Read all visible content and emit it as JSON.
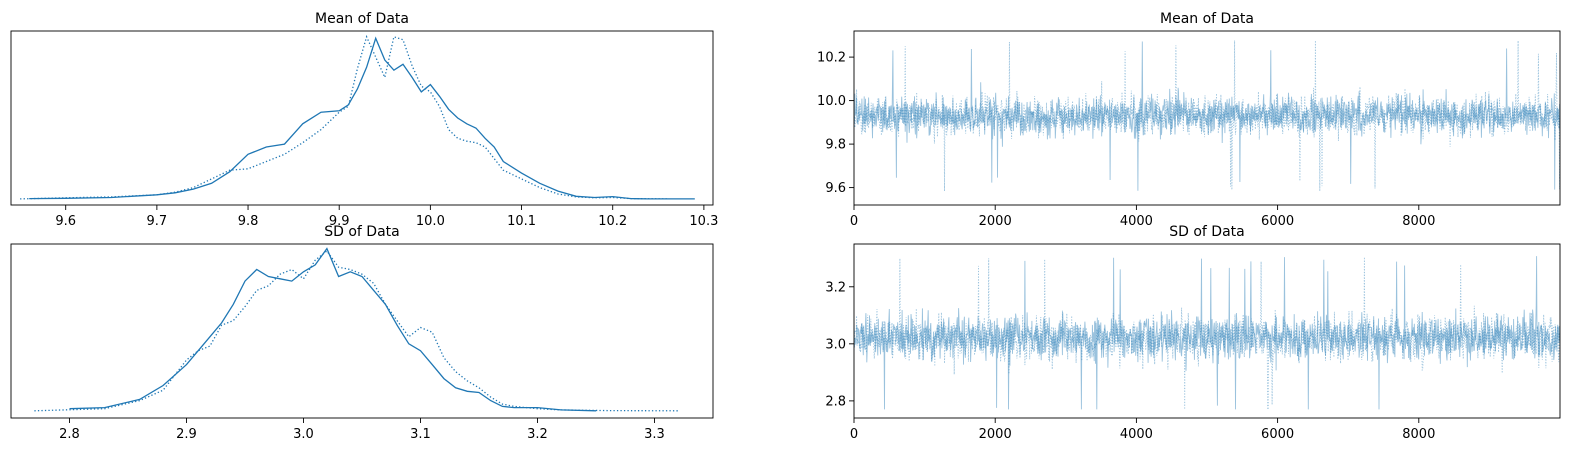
{
  "figure": {
    "background": "#ffffff"
  },
  "colors": {
    "series": "#1f77b4",
    "trace_alpha": 0.45
  },
  "chart_data": [
    {
      "panel": "mean-density",
      "type": "line",
      "title": "Mean of Data",
      "xlabel": "",
      "ylabel": "",
      "xlim": [
        9.54,
        10.31
      ],
      "ylim": [
        -0.2,
        5.8
      ],
      "xticks": [
        9.6,
        9.7,
        9.8,
        9.9,
        10.0,
        10.1,
        10.2,
        10.3
      ],
      "xtick_labels": [
        "9.6",
        "9.7",
        "9.8",
        "9.9",
        "10.0",
        "10.1",
        "10.2",
        "10.3"
      ],
      "show_yticks": false,
      "grid": false,
      "series": [
        {
          "style": "solid",
          "x": [
            9.56,
            9.6,
            9.65,
            9.7,
            9.72,
            9.74,
            9.76,
            9.78,
            9.8,
            9.82,
            9.84,
            9.86,
            9.88,
            9.9,
            9.91,
            9.92,
            9.93,
            9.94,
            9.95,
            9.96,
            9.97,
            9.98,
            9.99,
            10.0,
            10.01,
            10.02,
            10.03,
            10.04,
            10.05,
            10.06,
            10.07,
            10.08,
            10.1,
            10.12,
            10.14,
            10.16,
            10.18,
            10.2,
            10.22,
            10.24,
            10.29
          ],
          "y": [
            0.02,
            0.03,
            0.06,
            0.15,
            0.22,
            0.35,
            0.55,
            0.95,
            1.55,
            1.8,
            1.9,
            2.6,
            3.0,
            3.05,
            3.25,
            3.8,
            4.55,
            5.55,
            4.8,
            4.45,
            4.65,
            4.2,
            3.7,
            3.95,
            3.55,
            3.1,
            2.8,
            2.6,
            2.45,
            2.1,
            1.8,
            1.3,
            0.9,
            0.55,
            0.28,
            0.1,
            0.06,
            0.09,
            0.02,
            0.01,
            0.01
          ]
        },
        {
          "style": "dotted",
          "x": [
            9.55,
            9.6,
            9.65,
            9.7,
            9.72,
            9.74,
            9.76,
            9.78,
            9.8,
            9.82,
            9.84,
            9.86,
            9.88,
            9.9,
            9.91,
            9.92,
            9.93,
            9.94,
            9.95,
            9.96,
            9.97,
            9.98,
            9.99,
            10.0,
            10.01,
            10.02,
            10.03,
            10.04,
            10.05,
            10.06,
            10.07,
            10.08,
            10.1,
            10.12,
            10.14,
            10.16,
            10.18,
            10.2,
            10.22,
            10.26
          ],
          "y": [
            0.01,
            0.05,
            0.08,
            0.15,
            0.24,
            0.4,
            0.7,
            1.0,
            1.05,
            1.3,
            1.55,
            1.95,
            2.4,
            3.0,
            3.2,
            4.5,
            5.6,
            4.9,
            4.2,
            5.6,
            5.5,
            4.6,
            3.9,
            3.7,
            3.2,
            2.4,
            2.1,
            2.0,
            1.95,
            1.8,
            1.4,
            1.0,
            0.7,
            0.4,
            0.18,
            0.08,
            0.05,
            0.06,
            0.02,
            0.01
          ]
        }
      ]
    },
    {
      "panel": "mean-trace",
      "type": "line",
      "title": "Mean of Data",
      "xlabel": "",
      "ylabel": "",
      "xlim": [
        0,
        10000
      ],
      "ylim": [
        9.52,
        10.32
      ],
      "xticks": [
        0,
        2000,
        4000,
        6000,
        8000
      ],
      "xtick_labels": [
        "0",
        "2000",
        "4000",
        "6000",
        "8000"
      ],
      "yticks": [
        9.6,
        9.8,
        10.0,
        10.2
      ],
      "ytick_labels": [
        "9.6",
        "9.8",
        "10.0",
        "10.2"
      ],
      "grid": false,
      "sampler_trace": {
        "draws": 10000,
        "chains": 2,
        "center": 9.93,
        "spread": 0.08,
        "min": 9.55,
        "max": 10.28
      }
    },
    {
      "panel": "sd-density",
      "type": "line",
      "title": "SD of Data",
      "xlabel": "",
      "ylabel": "",
      "xlim": [
        2.75,
        3.35
      ],
      "ylim": [
        -0.3,
        7.2
      ],
      "xticks": [
        2.8,
        2.9,
        3.0,
        3.1,
        3.2,
        3.3
      ],
      "xtick_labels": [
        "2.8",
        "2.9",
        "3.0",
        "3.1",
        "3.2",
        "3.3"
      ],
      "show_yticks": false,
      "grid": false,
      "series": [
        {
          "style": "solid",
          "x": [
            2.8,
            2.83,
            2.86,
            2.88,
            2.9,
            2.91,
            2.92,
            2.93,
            2.94,
            2.95,
            2.96,
            2.97,
            2.98,
            2.99,
            3.0,
            3.01,
            3.02,
            3.03,
            3.04,
            3.05,
            3.06,
            3.07,
            3.08,
            3.09,
            3.1,
            3.11,
            3.12,
            3.13,
            3.14,
            3.15,
            3.16,
            3.17,
            3.18,
            3.2,
            3.22,
            3.25
          ],
          "y": [
            0.1,
            0.15,
            0.5,
            1.1,
            2.0,
            2.6,
            3.2,
            3.8,
            4.6,
            5.6,
            6.1,
            5.8,
            5.7,
            5.6,
            6.0,
            6.3,
            7.0,
            5.8,
            6.0,
            5.8,
            5.2,
            4.6,
            3.7,
            2.9,
            2.6,
            2.0,
            1.4,
            1.0,
            0.85,
            0.8,
            0.45,
            0.2,
            0.15,
            0.15,
            0.05,
            0.01
          ]
        },
        {
          "style": "dotted",
          "x": [
            2.77,
            2.83,
            2.86,
            2.88,
            2.9,
            2.91,
            2.92,
            2.93,
            2.94,
            2.95,
            2.96,
            2.97,
            2.98,
            2.99,
            3.0,
            3.01,
            3.02,
            3.03,
            3.04,
            3.05,
            3.06,
            3.07,
            3.08,
            3.09,
            3.1,
            3.11,
            3.12,
            3.13,
            3.14,
            3.15,
            3.16,
            3.17,
            3.18,
            3.2,
            3.22,
            3.26,
            3.32
          ],
          "y": [
            0.01,
            0.1,
            0.45,
            0.9,
            2.2,
            2.6,
            2.8,
            3.7,
            3.9,
            4.5,
            5.2,
            5.4,
            5.9,
            6.1,
            5.7,
            6.5,
            6.9,
            6.2,
            6.1,
            5.9,
            5.5,
            4.6,
            3.9,
            3.2,
            3.6,
            3.4,
            2.3,
            1.7,
            1.3,
            1.0,
            0.6,
            0.3,
            0.2,
            0.1,
            0.05,
            0.02,
            0.01
          ]
        }
      ]
    },
    {
      "panel": "sd-trace",
      "type": "line",
      "title": "SD of Data",
      "xlabel": "",
      "ylabel": "",
      "xlim": [
        0,
        10000
      ],
      "ylim": [
        2.74,
        3.35
      ],
      "xticks": [
        0,
        2000,
        4000,
        6000,
        8000
      ],
      "xtick_labels": [
        "0",
        "2000",
        "4000",
        "6000",
        "8000"
      ],
      "yticks": [
        2.8,
        3.0,
        3.2
      ],
      "ytick_labels": [
        "2.8",
        "3.0",
        "3.2"
      ],
      "grid": false,
      "sampler_trace": {
        "draws": 10000,
        "chains": 2,
        "center": 3.02,
        "spread": 0.07,
        "min": 2.77,
        "max": 3.31
      }
    }
  ]
}
